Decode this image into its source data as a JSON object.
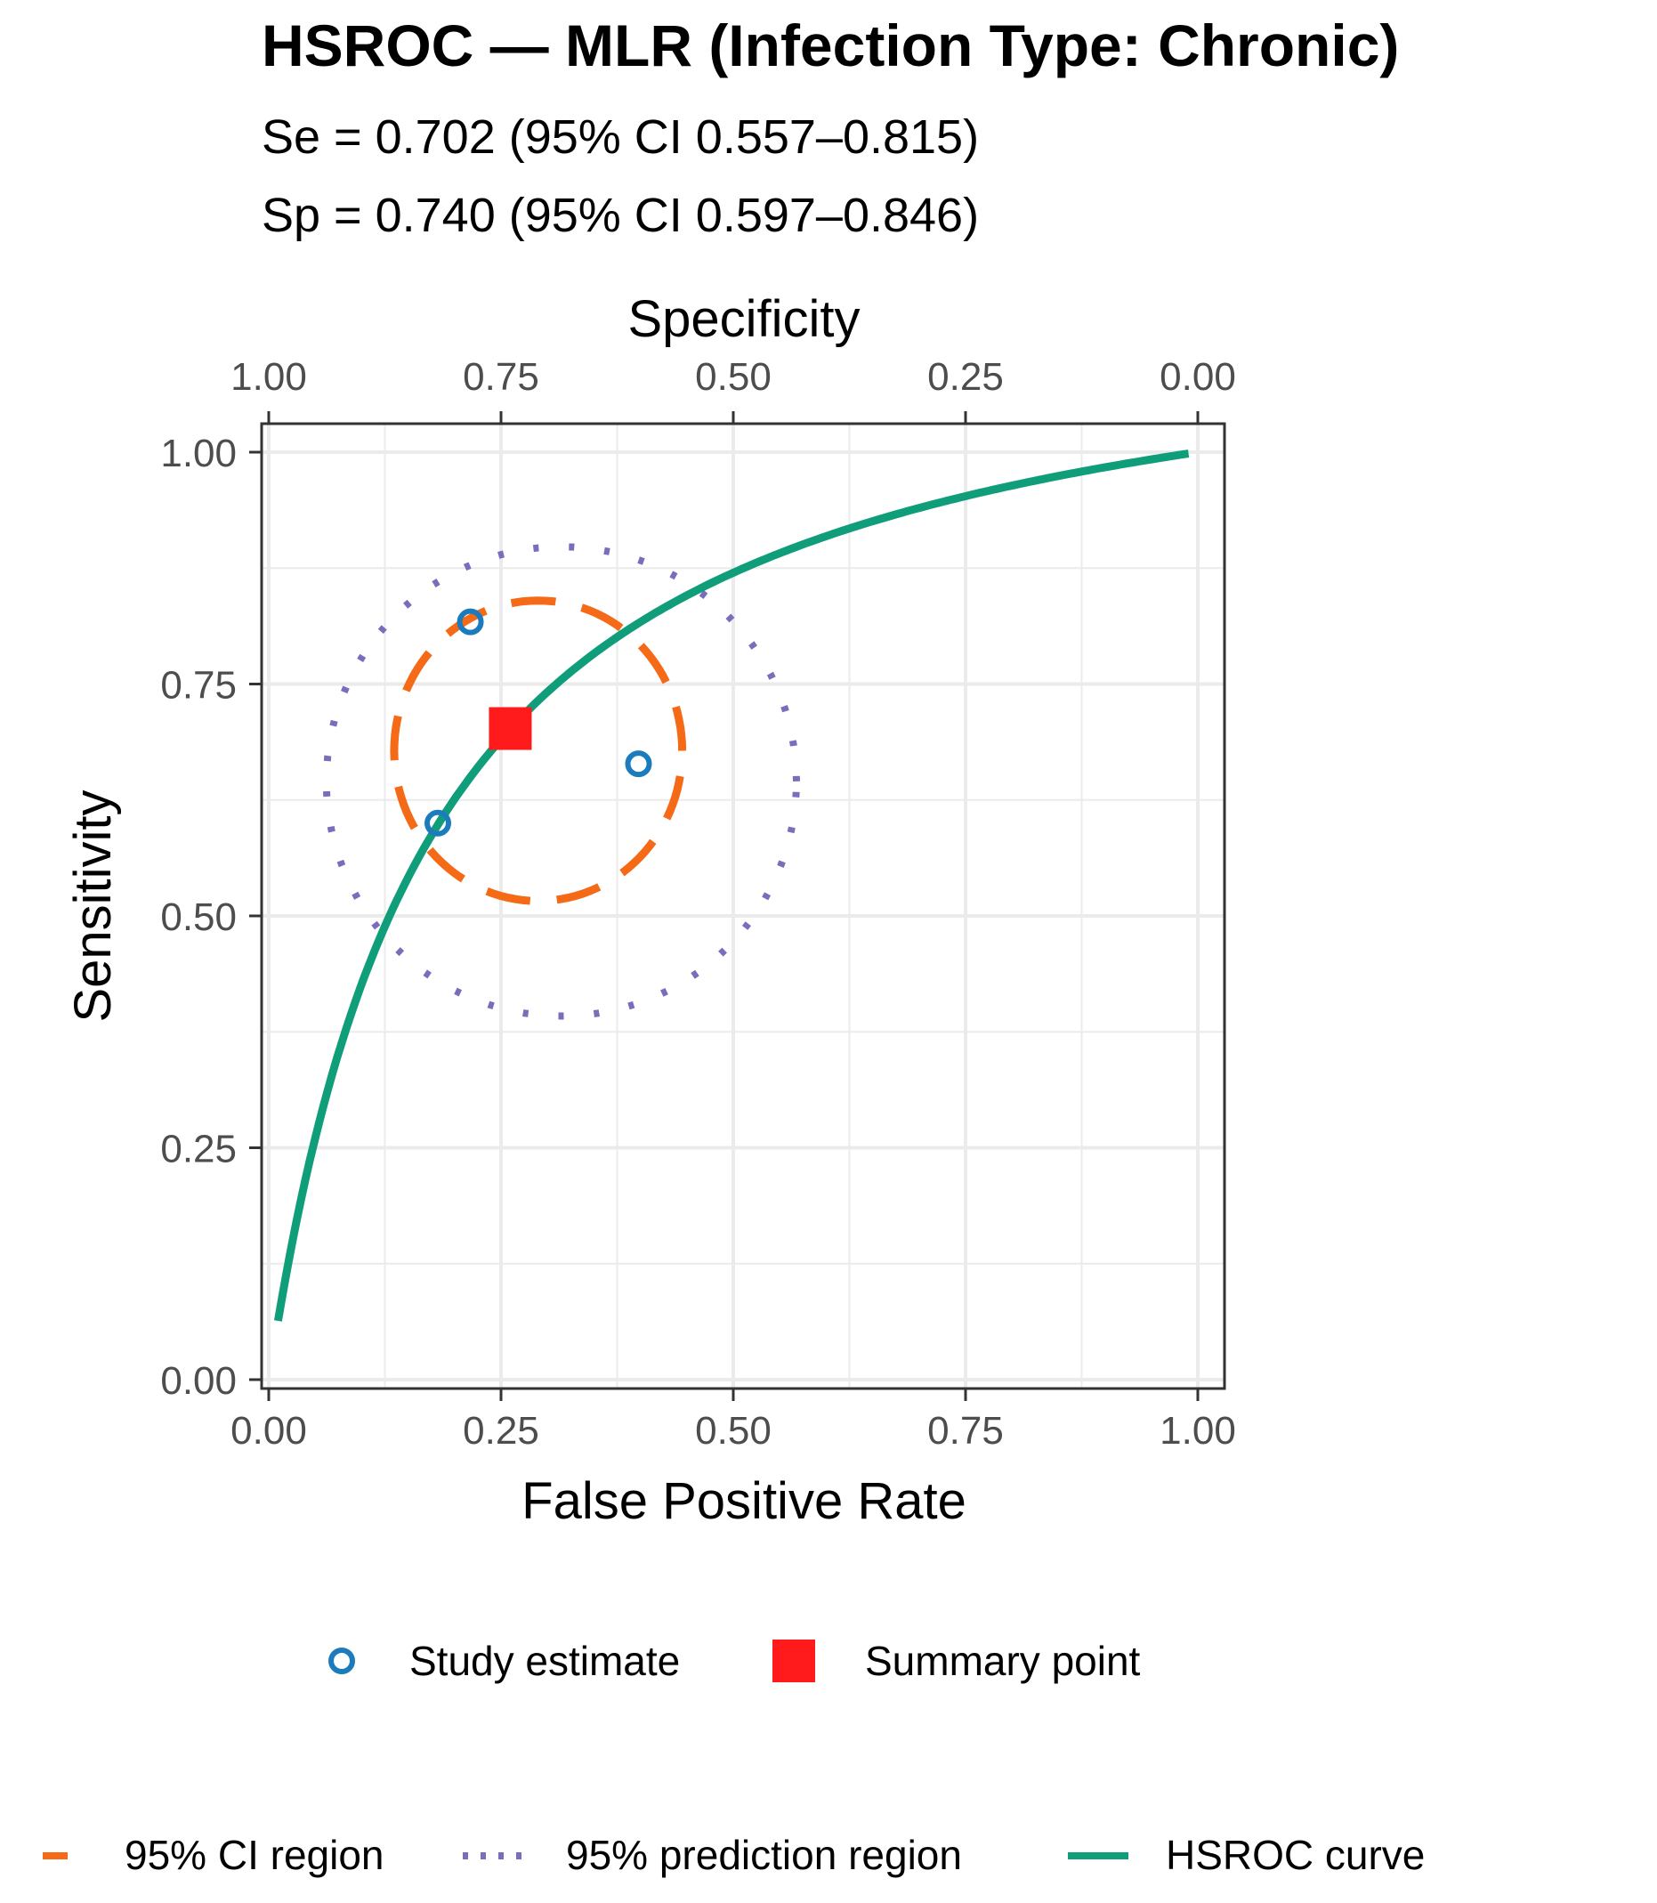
{
  "chart_data": {
    "type": "scatter",
    "title": "HSROC — MLR (Infection Type: Chronic)",
    "subtitle_lines": [
      "Se = 0.702 (95% CI 0.557–0.815)",
      "Sp = 0.740 (95% CI 0.597–0.846)"
    ],
    "xlabel": "False Positive Rate",
    "ylabel": "Sensitivity",
    "top_axis_label": "Specificity",
    "xlim": [
      0,
      1
    ],
    "ylim": [
      0,
      1
    ],
    "x_ticks": [
      "0.00",
      "0.25",
      "0.50",
      "0.75",
      "1.00"
    ],
    "y_ticks": [
      "0.00",
      "0.25",
      "0.50",
      "0.75",
      "1.00"
    ],
    "top_ticks": [
      "1.00",
      "0.75",
      "0.50",
      "0.25",
      "0.00"
    ],
    "grid": true,
    "study_estimates": [
      {
        "fpr": 0.217,
        "sensitivity": 0.817
      },
      {
        "fpr": 0.398,
        "sensitivity": 0.664
      },
      {
        "fpr": 0.182,
        "sensitivity": 0.6
      }
    ],
    "summary_point": {
      "fpr": 0.26,
      "sensitivity": 0.702
    },
    "hsroc_curve": {
      "x_min": 0.01,
      "x_max": 0.99,
      "x_at_half": 0.13
    },
    "ci_region": {
      "center_fpr": 0.29,
      "center_sensitivity": 0.678,
      "semi_axis_fpr": 0.155,
      "semi_axis_sensitivity": 0.162
    },
    "prediction_region": {
      "center_fpr": 0.315,
      "center_sensitivity": 0.645,
      "semi_axis_fpr": 0.253,
      "semi_axis_sensitivity": 0.253
    },
    "legend": {
      "row1": [
        {
          "key": "study",
          "label": "Study estimate"
        },
        {
          "key": "summary",
          "label": "Summary point"
        }
      ],
      "row2": [
        {
          "key": "ci",
          "label": "95% CI region"
        },
        {
          "key": "pred",
          "label": "95% prediction region"
        },
        {
          "key": "curve",
          "label": "HSROC curve"
        }
      ],
      "placement": "bottom"
    },
    "colors": {
      "study": "#1b7bbd",
      "summary": "#ff1b1b",
      "ci": "#f56a16",
      "pred": "#7a6dbb",
      "curve": "#0f9e79",
      "grid": "#ebebeb",
      "frame": "#333333"
    }
  }
}
